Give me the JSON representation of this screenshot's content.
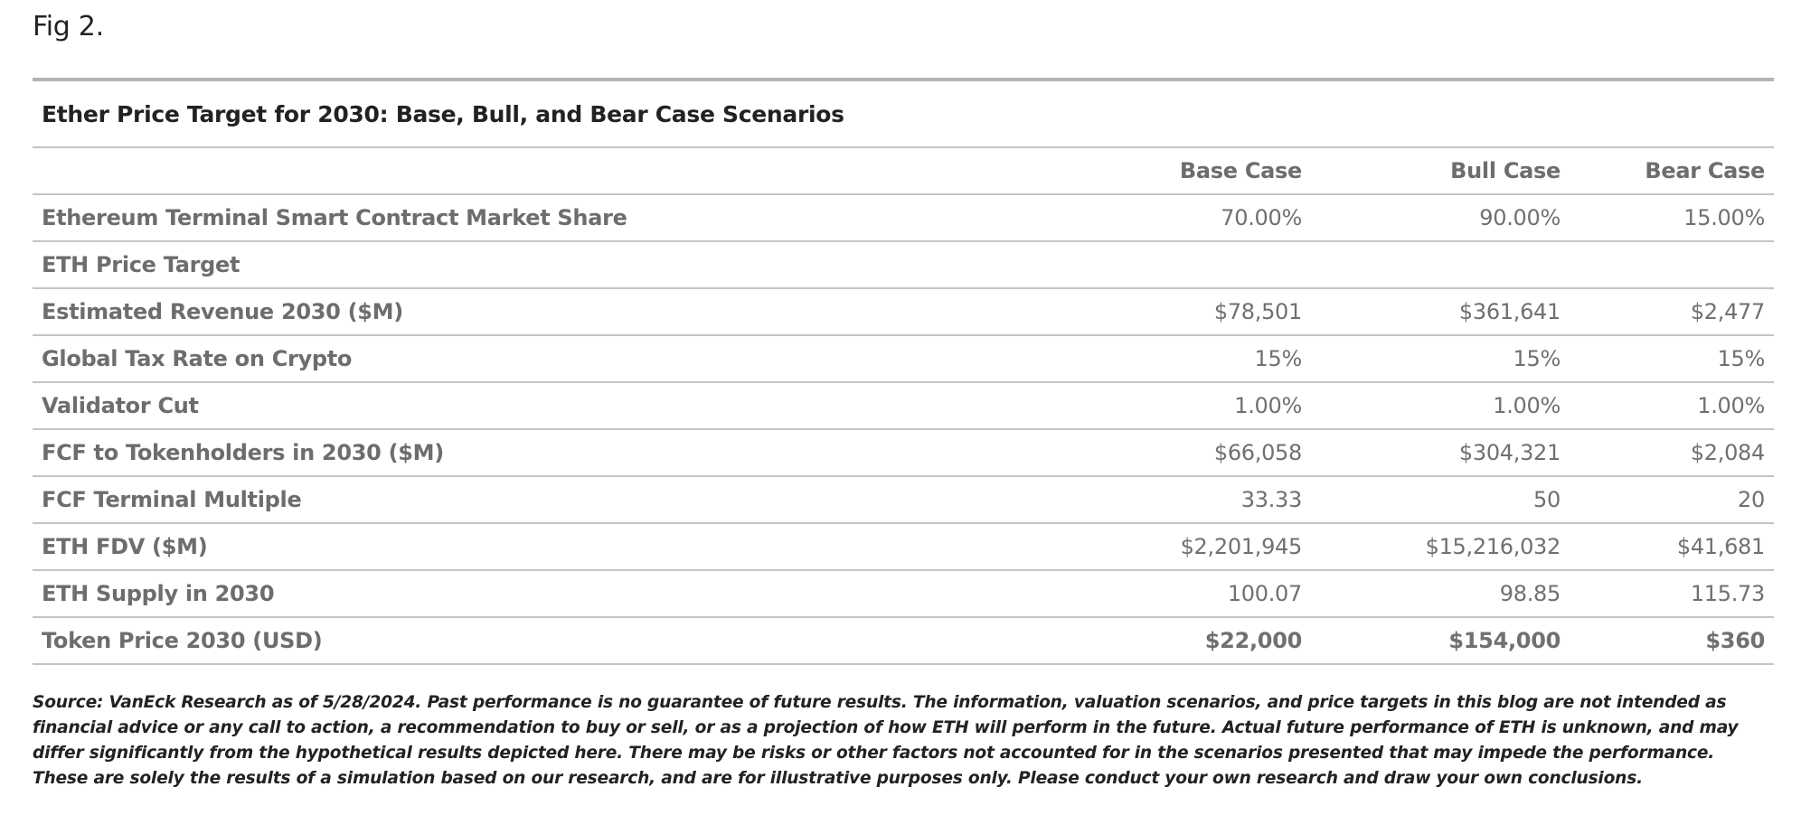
{
  "figure": {
    "label": "Fig 2."
  },
  "table": {
    "title": "Ether Price Target for 2030: Base, Bull, and Bear Case Scenarios",
    "columns": [
      "",
      "Base Case",
      "Bull Case",
      "Bear Case"
    ],
    "rows": [
      {
        "label": "Ethereum Terminal Smart Contract Market Share",
        "base": "70.00%",
        "bull": "90.00%",
        "bear": "15.00%"
      },
      {
        "label": "ETH Price Target",
        "base": "",
        "bull": "",
        "bear": ""
      },
      {
        "label": "Estimated Revenue 2030 ($M)",
        "base": "$78,501",
        "bull": "$361,641",
        "bear": "$2,477"
      },
      {
        "label": "Global Tax Rate on Crypto",
        "base": "15%",
        "bull": "15%",
        "bear": "15%"
      },
      {
        "label": "Validator Cut",
        "base": "1.00%",
        "bull": "1.00%",
        "bear": "1.00%"
      },
      {
        "label": "FCF to Tokenholders in 2030 ($M)",
        "base": "$66,058",
        "bull": "$304,321",
        "bear": "$2,084"
      },
      {
        "label": "FCF Terminal Multiple",
        "base": "33.33",
        "bull": "50",
        "bear": "20"
      },
      {
        "label": "ETH FDV ($M)",
        "base": "$2,201,945",
        "bull": "$15,216,032",
        "bear": "$41,681"
      },
      {
        "label": "ETH Supply in 2030",
        "base": "100.07",
        "bull": "98.85",
        "bear": "115.73"
      },
      {
        "label": "Token Price 2030 (USD)",
        "base": "$22,000",
        "bull": "$154,000",
        "bear": "$360"
      }
    ]
  },
  "footnote": "Source: VanEck Research as of 5/28/2024. Past performance is no guarantee of future results. The information, valuation scenarios, and price targets in this blog are not intended as financial advice or any call to action, a recommendation to buy or sell, or as a projection of how ETH will perform in the future. Actual future performance of ETH is unknown, and may differ significantly from the hypothetical results depicted here. There may be risks or other factors not accounted for in the scenarios presented that may impede the performance. These are solely the results of a simulation based on our research, and are for illustrative purposes only. Please conduct your own research and draw your own conclusions."
}
